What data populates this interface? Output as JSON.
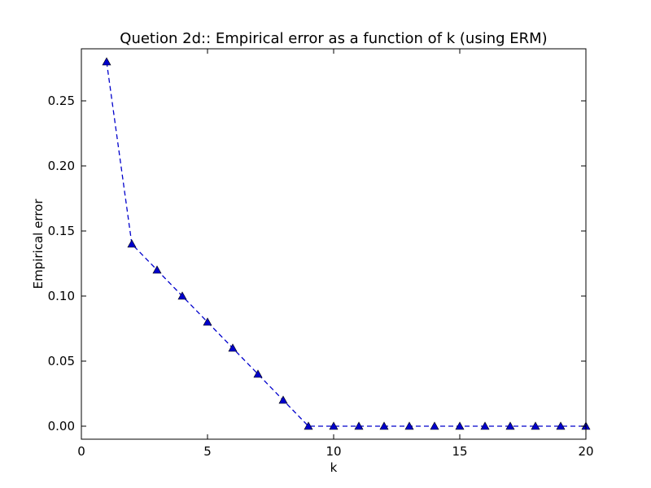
{
  "chart_data": {
    "type": "line",
    "title": "Quetion 2d:: Empirical error as a function of k (using ERM)",
    "xlabel": "k",
    "ylabel": "Empirical error",
    "xlim": [
      0,
      20
    ],
    "ylim": [
      -0.01,
      0.29
    ],
    "x_ticks": [
      0,
      5,
      10,
      15,
      20
    ],
    "y_ticks": [
      0.0,
      0.05,
      0.1,
      0.15,
      0.2,
      0.25
    ],
    "x_tick_labels": [
      "0",
      "5",
      "10",
      "15",
      "20"
    ],
    "y_tick_labels": [
      "0.00",
      "0.05",
      "0.10",
      "0.15",
      "0.20",
      "0.25"
    ],
    "grid": false,
    "series": [
      {
        "line_style": "dashed",
        "marker": "triangle-up",
        "color": "#0000cc",
        "x": [
          1,
          2,
          3,
          4,
          5,
          6,
          7,
          8,
          9,
          10,
          11,
          12,
          13,
          14,
          15,
          16,
          17,
          18,
          19,
          20
        ],
        "y": [
          0.28,
          0.14,
          0.12,
          0.1,
          0.08,
          0.06,
          0.04,
          0.02,
          0.0,
          0.0,
          0.0,
          0.0,
          0.0,
          0.0,
          0.0,
          0.0,
          0.0,
          0.0,
          0.0,
          0.0
        ]
      }
    ]
  }
}
